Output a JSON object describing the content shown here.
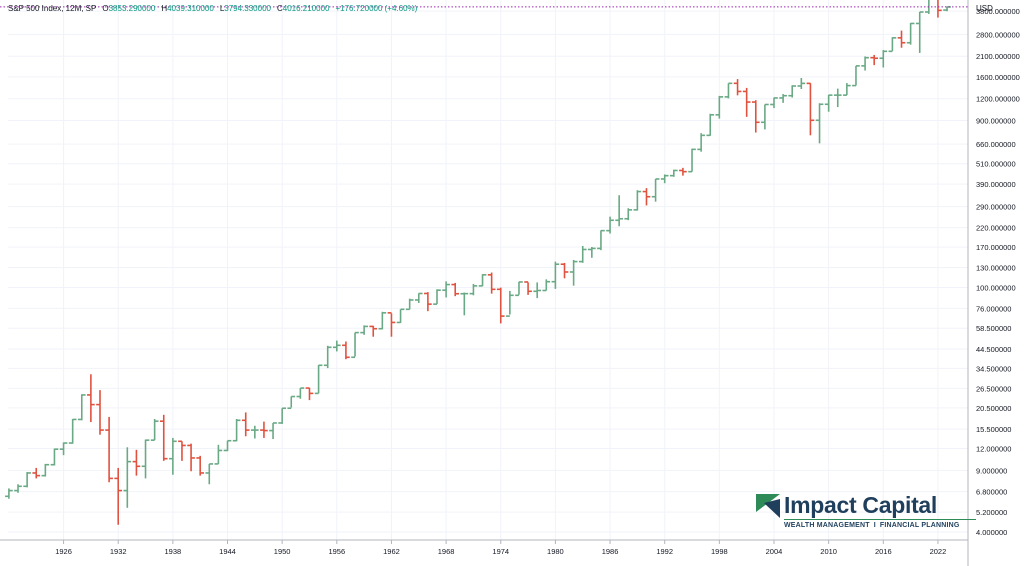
{
  "header": {
    "symbol": "S&P 500 Index, 12M, SP",
    "open_label": "O",
    "open": "3853.290000",
    "high_label": "H",
    "high": "4039.310000",
    "low_label": "L",
    "low": "3794.330000",
    "close_label": "C",
    "close": "4016.210000",
    "change": "+176.720000 (+4.60%)"
  },
  "price_axis": {
    "currency": "USD",
    "labels": [
      "3800.000000",
      "2800.000000",
      "2100.000000",
      "1600.000000",
      "1200.000000",
      "900.000000",
      "660.000000",
      "510.000000",
      "390.000000",
      "290.000000",
      "220.000000",
      "170.000000",
      "130.000000",
      "100.000000",
      "76.000000",
      "58.500000",
      "44.500000",
      "34.500000",
      "26.500000",
      "20.500000",
      "15.500000",
      "12.000000",
      "9.000000",
      "6.800000",
      "5.200000",
      "4.000000"
    ]
  },
  "time_axis": {
    "labels": [
      "1926",
      "1932",
      "1938",
      "1944",
      "1950",
      "1956",
      "1962",
      "1968",
      "1974",
      "1980",
      "1986",
      "1992",
      "1998",
      "2004",
      "2010",
      "2016",
      "2022"
    ]
  },
  "logo": {
    "name": "Impact Capital",
    "tag_left": "WEALTH MANAGEMENT",
    "tag_sep": "I",
    "tag_right": "FINANCIAL PLANNING"
  },
  "colors": {
    "up": "#6aa985",
    "down": "#e0523f",
    "grid": "#f0f3fa",
    "axis_text": "#131722",
    "price_line": "#9c27b0",
    "brand": "#1f3f5c",
    "brand_green": "#2e8b57"
  },
  "chart_data": {
    "type": "ohlc",
    "scale": "log",
    "interval": "12M",
    "current_price": 4016.21,
    "ylim": [
      3.6,
      4400
    ],
    "xlim": [
      1919.9,
      2025.3
    ],
    "bars": [
      [
        1920,
        6.4,
        7.1,
        6.2,
        6.9
      ],
      [
        1921,
        6.9,
        7.5,
        6.7,
        7.3
      ],
      [
        1922,
        7.3,
        8.8,
        7.2,
        8.7
      ],
      [
        1923,
        8.7,
        9.3,
        8.1,
        8.4
      ],
      [
        1924,
        8.4,
        9.8,
        8.3,
        9.7
      ],
      [
        1925,
        9.7,
        12.0,
        9.6,
        11.9
      ],
      [
        1926,
        11.9,
        13.0,
        11.0,
        12.9
      ],
      [
        1927,
        12.9,
        17.7,
        12.8,
        17.6
      ],
      [
        1928,
        17.6,
        24.5,
        17.4,
        24.3
      ],
      [
        1929,
        24.3,
        31.9,
        17.0,
        21.4
      ],
      [
        1930,
        21.4,
        25.9,
        14.4,
        15.3
      ],
      [
        1931,
        15.3,
        18.2,
        7.7,
        8.1
      ],
      [
        1932,
        8.1,
        9.3,
        4.4,
        6.9
      ],
      [
        1933,
        6.9,
        12.2,
        5.5,
        10.1
      ],
      [
        1934,
        10.1,
        11.8,
        8.4,
        9.5
      ],
      [
        1935,
        9.5,
        13.5,
        8.1,
        13.4
      ],
      [
        1936,
        13.4,
        17.7,
        13.4,
        17.2
      ],
      [
        1937,
        17.2,
        18.7,
        10.2,
        10.5
      ],
      [
        1938,
        10.5,
        13.8,
        8.5,
        13.2
      ],
      [
        1939,
        13.2,
        13.2,
        10.2,
        12.5
      ],
      [
        1940,
        12.5,
        12.8,
        8.9,
        10.6
      ],
      [
        1941,
        10.6,
        10.9,
        8.4,
        8.7
      ],
      [
        1942,
        8.7,
        9.8,
        7.5,
        9.8
      ],
      [
        1943,
        9.8,
        12.6,
        9.8,
        11.7
      ],
      [
        1944,
        11.7,
        13.3,
        11.6,
        13.3
      ],
      [
        1945,
        13.3,
        17.7,
        13.2,
        17.4
      ],
      [
        1946,
        17.4,
        19.3,
        14.1,
        15.3
      ],
      [
        1947,
        15.3,
        16.2,
        13.7,
        15.3
      ],
      [
        1948,
        15.3,
        17.1,
        13.8,
        15.2
      ],
      [
        1949,
        15.2,
        16.8,
        13.6,
        16.8
      ],
      [
        1950,
        16.8,
        20.4,
        16.6,
        20.4
      ],
      [
        1951,
        20.4,
        23.8,
        20.6,
        23.8
      ],
      [
        1952,
        23.8,
        26.6,
        23.1,
        26.6
      ],
      [
        1953,
        26.6,
        26.7,
        22.7,
        24.8
      ],
      [
        1954,
        24.8,
        36.0,
        24.8,
        35.9
      ],
      [
        1955,
        35.9,
        46.4,
        34.6,
        45.5
      ],
      [
        1956,
        45.5,
        49.7,
        43.1,
        46.7
      ],
      [
        1957,
        46.7,
        49.1,
        38.9,
        39.9
      ],
      [
        1958,
        39.9,
        55.2,
        40.3,
        55.2
      ],
      [
        1959,
        55.2,
        60.7,
        53.6,
        59.9
      ],
      [
        1960,
        59.9,
        60.4,
        52.3,
        58.1
      ],
      [
        1961,
        58.1,
        72.6,
        57.6,
        71.6
      ],
      [
        1962,
        71.6,
        71.1,
        52.3,
        63.1
      ],
      [
        1963,
        63.1,
        75.0,
        62.7,
        75.0
      ],
      [
        1964,
        75.0,
        86.3,
        75.0,
        84.8
      ],
      [
        1965,
        84.8,
        92.6,
        81.6,
        92.4
      ],
      [
        1966,
        92.4,
        94.1,
        73.2,
        80.3
      ],
      [
        1967,
        80.3,
        97.6,
        80.4,
        96.5
      ],
      [
        1968,
        96.5,
        108.4,
        87.7,
        103.9
      ],
      [
        1969,
        103.9,
        106.2,
        89.2,
        92.1
      ],
      [
        1970,
        92.1,
        93.5,
        69.3,
        92.2
      ],
      [
        1971,
        92.2,
        104.8,
        90.2,
        102.1
      ],
      [
        1972,
        102.1,
        119.1,
        101.7,
        118.1
      ],
      [
        1973,
        118.1,
        121.7,
        92.2,
        97.6
      ],
      [
        1974,
        97.6,
        99.8,
        62.3,
        68.6
      ],
      [
        1975,
        68.6,
        95.6,
        70.0,
        90.2
      ],
      [
        1976,
        90.2,
        107.8,
        90.9,
        107.5
      ],
      [
        1977,
        107.5,
        107.0,
        90.7,
        95.1
      ],
      [
        1978,
        95.1,
        106.9,
        86.9,
        96.1
      ],
      [
        1979,
        96.1,
        111.3,
        96.1,
        107.9
      ],
      [
        1980,
        107.9,
        140.5,
        98.2,
        135.8
      ],
      [
        1981,
        135.8,
        138.1,
        112.8,
        122.6
      ],
      [
        1982,
        122.6,
        143.7,
        102.4,
        140.6
      ],
      [
        1983,
        140.6,
        172.7,
        138.3,
        164.9
      ],
      [
        1984,
        164.9,
        170.4,
        147.8,
        167.2
      ],
      [
        1985,
        167.2,
        212.0,
        163.4,
        211.3
      ],
      [
        1986,
        211.3,
        254.0,
        203.5,
        242.2
      ],
      [
        1987,
        242.2,
        336.8,
        223.9,
        247.1
      ],
      [
        1988,
        247.1,
        283.7,
        242.6,
        277.7
      ],
      [
        1989,
        277.7,
        359.8,
        275.3,
        353.4
      ],
      [
        1990,
        353.4,
        369.8,
        294.5,
        330.2
      ],
      [
        1991,
        330.2,
        417.1,
        309.4,
        417.1
      ],
      [
        1992,
        417.1,
        442.7,
        394.5,
        435.7
      ],
      [
        1993,
        435.7,
        471.3,
        429.1,
        466.5
      ],
      [
        1994,
        466.5,
        482.9,
        435.9,
        459.3
      ],
      [
        1995,
        459.3,
        621.7,
        459.1,
        615.9
      ],
      [
        1996,
        615.9,
        762.1,
        597.3,
        740.7
      ],
      [
        1997,
        740.7,
        983.8,
        737.0,
        970.4
      ],
      [
        1998,
        970.4,
        1244.9,
        923.3,
        1229.2
      ],
      [
        1999,
        1229.2,
        1469.3,
        1205.5,
        1469.3
      ],
      [
        2000,
        1469.3,
        1553.1,
        1254.1,
        1320.3
      ],
      [
        2001,
        1320.3,
        1383.4,
        944.8,
        1148.1
      ],
      [
        2002,
        1148.1,
        1176.9,
        768.6,
        879.8
      ],
      [
        2003,
        879.8,
        1111.9,
        800.7,
        1111.9
      ],
      [
        2004,
        1111.9,
        1217.9,
        1060.7,
        1211.9
      ],
      [
        2005,
        1211.9,
        1275.8,
        1136.2,
        1248.3
      ],
      [
        2006,
        1248.3,
        1431.8,
        1219.3,
        1418.3
      ],
      [
        2007,
        1418.3,
        1576.1,
        1363.9,
        1468.4
      ],
      [
        2008,
        1468.4,
        1471.8,
        741.0,
        903.3
      ],
      [
        2009,
        903.3,
        1130.4,
        666.8,
        1115.1
      ],
      [
        2010,
        1115.1,
        1262.6,
        1010.9,
        1257.6
      ],
      [
        2011,
        1257.6,
        1370.6,
        1074.8,
        1257.6
      ],
      [
        2012,
        1257.6,
        1474.5,
        1258.9,
        1426.2
      ],
      [
        2013,
        1426.2,
        1849.4,
        1426.2,
        1848.4
      ],
      [
        2014,
        1848.4,
        2093.6,
        1737.9,
        2058.9
      ],
      [
        2015,
        2058.9,
        2134.7,
        1867.0,
        2043.9
      ],
      [
        2016,
        2043.9,
        2277.5,
        1810.1,
        2238.8
      ],
      [
        2017,
        2238.8,
        2694.9,
        2245.1,
        2673.6
      ],
      [
        2018,
        2673.6,
        2940.9,
        2346.6,
        2506.9
      ],
      [
        2019,
        2506.9,
        3247.9,
        2443.9,
        3230.8
      ],
      [
        2020,
        3230.8,
        3760.2,
        2191.9,
        3756.1
      ],
      [
        2021,
        3756.1,
        4808.9,
        3662.7,
        4766.2
      ],
      [
        2022,
        4766.2,
        4818.6,
        3491.6,
        3839.5
      ],
      [
        2023,
        3853.29,
        4039.31,
        3794.33,
        4016.21
      ]
    ]
  }
}
